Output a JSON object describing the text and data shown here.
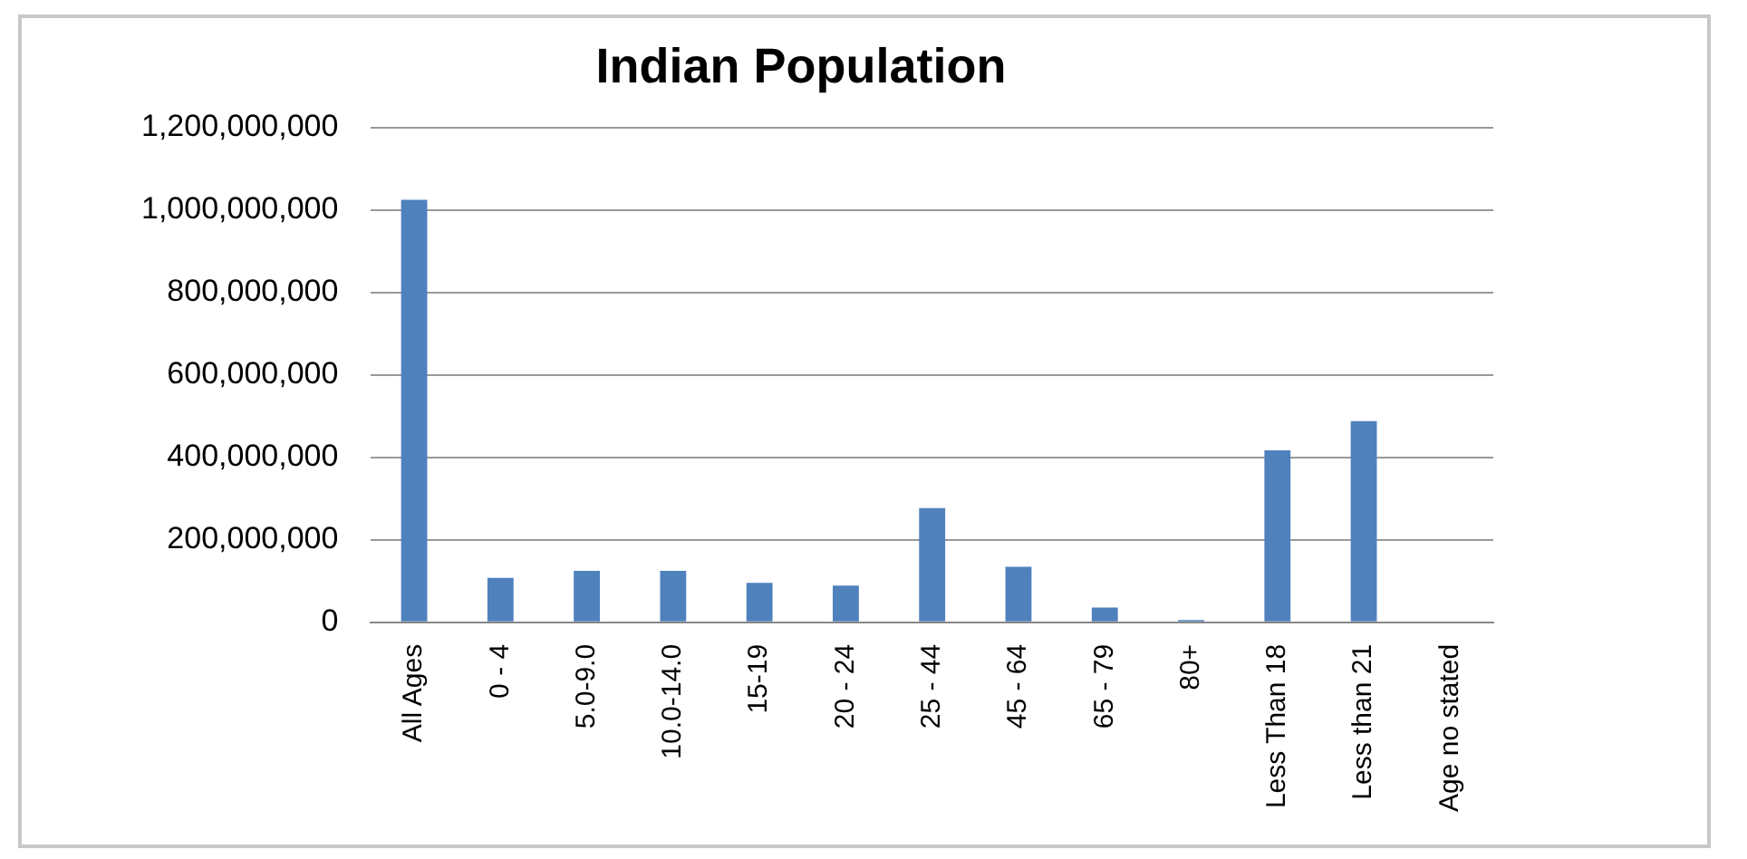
{
  "chart_data": {
    "type": "bar",
    "title": "Indian Population",
    "categories": [
      "All Ages",
      "0 - 4",
      "5.0-9.0",
      "10.0-14.0",
      "15-19",
      "20 - 24",
      "25 - 44",
      "45 - 64",
      "65 - 79",
      "80+",
      "Less Than 18",
      "Less than 21",
      "Age no stated"
    ],
    "values": [
      1025000000,
      108000000,
      125000000,
      125000000,
      96000000,
      89000000,
      277000000,
      135000000,
      36000000,
      6000000,
      417000000,
      488000000,
      0
    ],
    "color": "#4f81bd",
    "ylim": [
      0,
      1200000000
    ],
    "yticks": [
      0,
      {
        "value": 200000000,
        "label": "200,000,000"
      },
      {
        "value": 400000000,
        "label": "400,000,000"
      },
      {
        "value": 600000000,
        "label": "600,000,000"
      },
      {
        "value": 800000000,
        "label": "800,000,000"
      },
      {
        "value": 1000000000,
        "label": "1,000,000,000"
      },
      {
        "value": 1200000000,
        "label": "1,200,000,000"
      }
    ],
    "grid": "y",
    "legend": false
  }
}
